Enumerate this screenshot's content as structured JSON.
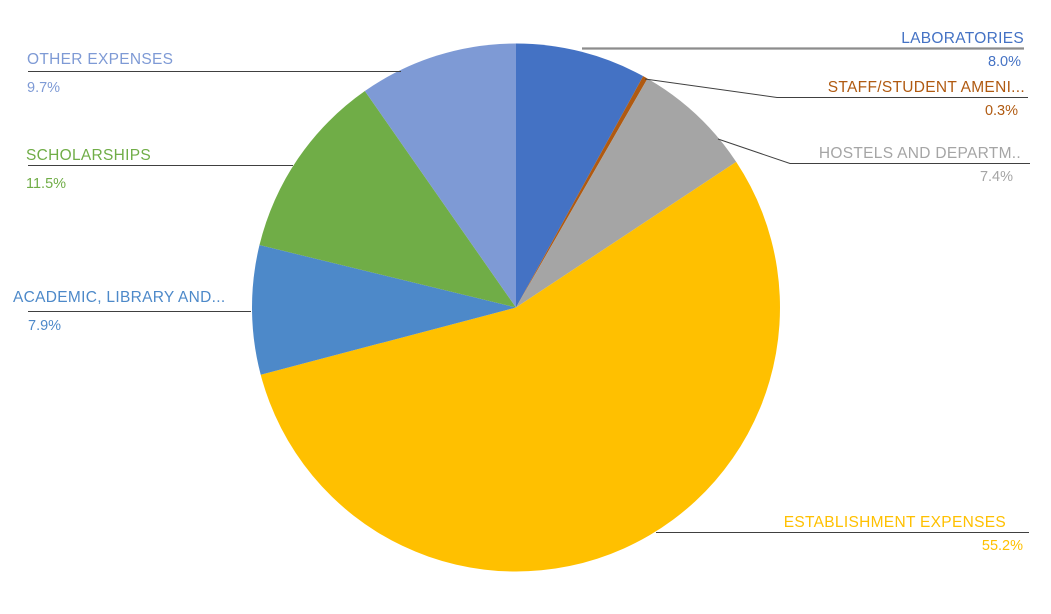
{
  "chart_data": {
    "type": "pie",
    "title": "",
    "background": "#FFFFFF",
    "legend_position": "none",
    "labels_style": "outside-callouts-with-leader-lines",
    "direction": "clockwise",
    "start_angle_deg": 0,
    "slices": [
      {
        "label": "LABORATORIES",
        "value": 8.0,
        "pct_label": "8.0%",
        "color": "#4472C4"
      },
      {
        "label": "STAFF/STUDENT AMENI...",
        "value": 0.3,
        "pct_label": "0.3%",
        "color": "#B05A11"
      },
      {
        "label": "HOSTELS AND DEPARTM..",
        "value": 7.4,
        "pct_label": "7.4%",
        "color": "#A5A5A5"
      },
      {
        "label": "ESTABLISHMENT EXPENSES",
        "value": 55.2,
        "pct_label": "55.2%",
        "color": "#FFC000"
      },
      {
        "label": "ACADEMIC, LIBRARY AND...",
        "value": 7.9,
        "pct_label": "7.9%",
        "color": "#4D89C9"
      },
      {
        "label": "SCHOLARSHIPS",
        "value": 11.5,
        "pct_label": "11.5%",
        "color": "#70AD47"
      },
      {
        "label": "OTHER EXPENSES",
        "value": 9.7,
        "pct_label": "9.7%",
        "color": "#7E9AD5"
      }
    ],
    "leader_line_color": "#404040",
    "laboratories_leader_color": "#8C8C8C"
  }
}
